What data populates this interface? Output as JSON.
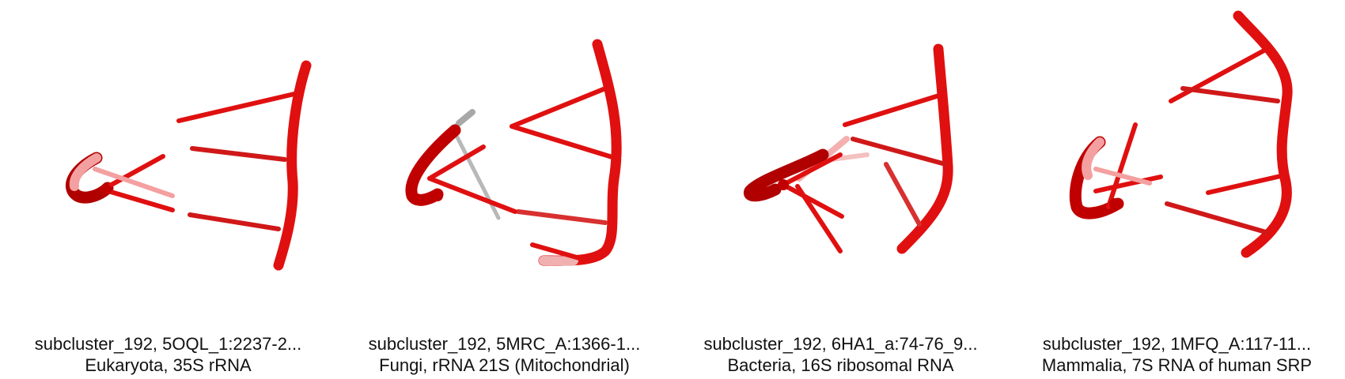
{
  "colors": {
    "strand": "#e01010",
    "strand_dark": "#b00000",
    "ghost": "#f4a0a0",
    "grey": "#b8b8b8",
    "text": "#111111"
  },
  "panels": [
    {
      "title": "subcluster_192, 5OQL_1:2237-2...",
      "subtitle": "Eukaryota, 35S rRNA"
    },
    {
      "title": "subcluster_192, 5MRC_A:1366-1...",
      "subtitle": "Fungi, rRNA 21S (Mitochondrial)"
    },
    {
      "title": "subcluster_192, 6HA1_a:74-76_9...",
      "subtitle": "Bacteria, 16S ribosomal RNA"
    },
    {
      "title": "subcluster_192, 1MFQ_A:117-11...",
      "subtitle": "Mammalia, 7S RNA of human SRP"
    }
  ]
}
